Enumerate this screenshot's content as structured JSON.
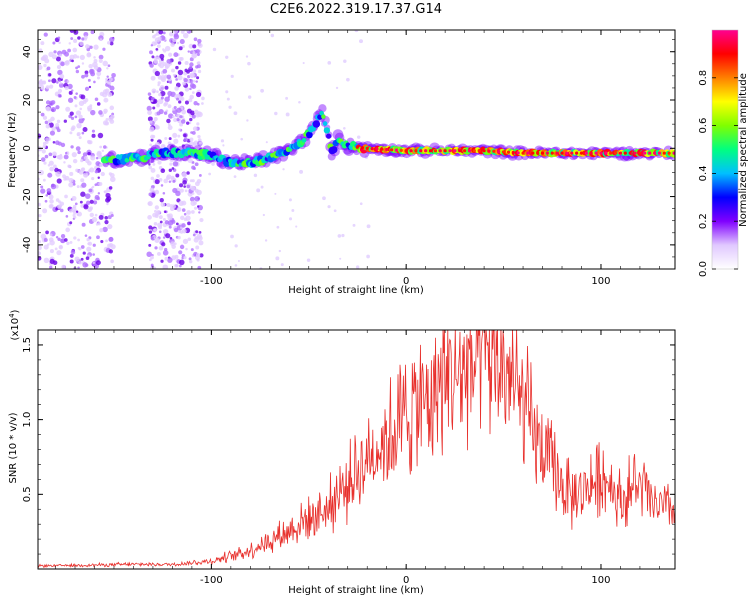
{
  "title": "C2E6.2022.319.17.37.G14",
  "chart_data": [
    {
      "type": "heatmap",
      "xlabel": "Height of straight line (km)",
      "ylabel": "Frequency (Hz)",
      "xlim": [
        -189,
        138
      ],
      "ylim": [
        -50,
        49
      ],
      "xticks": [
        -100,
        0,
        100
      ],
      "yticks": [
        40,
        20,
        0,
        -20,
        -40
      ],
      "colorbar": {
        "label": "Normalized spectral amplitude",
        "range": [
          0,
          1
        ],
        "ticks": [
          "0.0",
          "0.2",
          "0.4",
          "0.6",
          "0.8"
        ],
        "colormap": [
          "#ffffff",
          "#e0c8ff",
          "#8000ff",
          "#0000ff",
          "#00c0ff",
          "#00ff80",
          "#80ff00",
          "#ffff00",
          "#ff8000",
          "#ff0000",
          "#ff0090"
        ]
      },
      "ridge": {
        "x": [
          -155,
          -140,
          -125,
          -110,
          -100,
          -90,
          -80,
          -70,
          -60,
          -55,
          -50,
          -46,
          -43,
          -40,
          -38,
          -35,
          -30,
          -20,
          0,
          20,
          40,
          60,
          80,
          100,
          120,
          138
        ],
        "y": [
          -5,
          -4,
          -2,
          -2,
          -3,
          -6,
          -6,
          -4,
          -1,
          2,
          6,
          11,
          15,
          5,
          -2,
          4,
          1,
          0,
          -1,
          -1,
          -1,
          -2,
          -2,
          -2,
          -2,
          -2
        ]
      },
      "noise_bands": [
        [
          -189,
          -150
        ],
        [
          -132,
          -105
        ]
      ]
    },
    {
      "type": "line",
      "xlabel": "Height of straight line (km)",
      "ylabel": "SNR (10 * v/v)",
      "multiplier_label": "(x10",
      "multiplier_exp": "4",
      "multiplier_close": ")",
      "xlim": [
        -189,
        138
      ],
      "ylim": [
        0,
        1.6
      ],
      "xticks": [
        -100,
        0,
        100
      ],
      "yticks": [
        0.5,
        1.0,
        1.5
      ],
      "ytick_labels": [
        "0.5",
        "1.0",
        "1.5"
      ],
      "color": "#e8302c",
      "envelope": {
        "x": [
          -189,
          -140,
          -120,
          -100,
          -80,
          -60,
          -40,
          -30,
          -20,
          -10,
          0,
          10,
          20,
          30,
          40,
          45,
          50,
          55,
          60,
          65,
          70,
          75,
          80,
          85,
          90,
          95,
          100,
          105,
          110,
          115,
          120,
          125,
          130,
          138
        ],
        "y": [
          0.02,
          0.03,
          0.03,
          0.05,
          0.12,
          0.25,
          0.4,
          0.55,
          0.72,
          0.85,
          1.0,
          1.1,
          1.22,
          1.3,
          1.35,
          1.37,
          1.3,
          1.2,
          1.05,
          0.9,
          0.75,
          0.65,
          0.55,
          0.45,
          0.5,
          0.55,
          0.6,
          0.55,
          0.45,
          0.5,
          0.55,
          0.45,
          0.4,
          0.38
        ]
      }
    }
  ]
}
